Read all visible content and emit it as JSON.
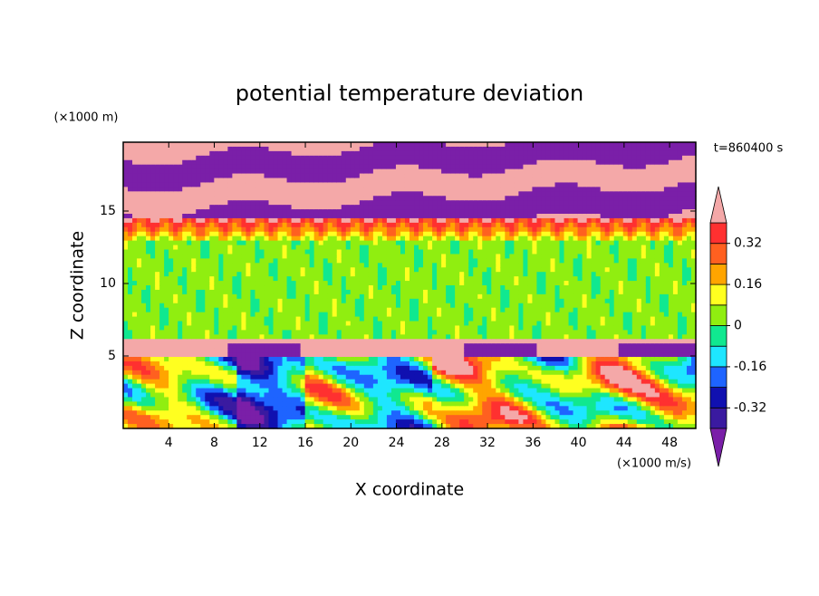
{
  "chart_data": {
    "type": "contour",
    "title": "potential temperature deviation",
    "x_label": "X coordinate",
    "y_label": "Z coordinate",
    "x_unit": "(×1000 m/s)",
    "y_unit": "(×1000 m)",
    "time_label": "t=860400 s",
    "xlim": [
      0,
      50.3
    ],
    "xticks": [
      4,
      8,
      12,
      16,
      20,
      24,
      28,
      32,
      36,
      40,
      44,
      48
    ],
    "ylim": [
      0,
      19.75
    ],
    "yticks": [
      5,
      10,
      15
    ],
    "colorbar": {
      "levels": [
        -0.4,
        -0.32,
        -0.24,
        -0.16,
        -0.08,
        0,
        0.08,
        0.16,
        0.24,
        0.32,
        0.4
      ],
      "colors": [
        "#7a1fa8",
        "#3a1aa0",
        "#1010b0",
        "#1e64ff",
        "#1ee6ff",
        "#10e890",
        "#90ee10",
        "#ffff20",
        "#ffa500",
        "#ff6020",
        "#ff3030",
        "#f4a8a8"
      ],
      "ticks": [
        -0.32,
        -0.16,
        0,
        0.16,
        0.32
      ]
    }
  }
}
